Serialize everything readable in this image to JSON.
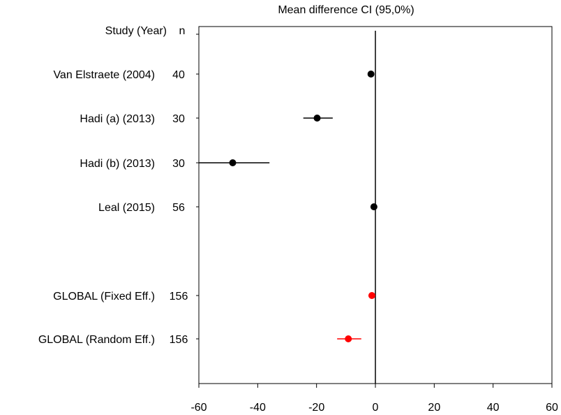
{
  "chart_data": {
    "type": "forest",
    "title": "Mean difference CI  (95,0%)",
    "header": {
      "study": "Study  (Year)",
      "n": "n"
    },
    "xlim": [
      -60,
      60
    ],
    "xticks": [
      -60,
      -40,
      -20,
      0,
      20,
      40,
      60
    ],
    "reference_line": 0,
    "studies": [
      {
        "label": "Van Elstraete (2004)",
        "n": "40",
        "estimate": -1.5,
        "ci": [
          -1.5,
          -1.5
        ],
        "color": "#000000"
      },
      {
        "label": "Hadi (a) (2013)",
        "n": "30",
        "estimate": -19.8,
        "ci": [
          -24.5,
          -14.5
        ],
        "color": "#000000"
      },
      {
        "label": "Hadi (b) (2013)",
        "n": "30",
        "estimate": -48.5,
        "ci": [
          -60,
          -36
        ],
        "color": "#000000"
      },
      {
        "label": "Leal (2015)",
        "n": "56",
        "estimate": -0.5,
        "ci": [
          -0.5,
          -0.5
        ],
        "color": "#000000"
      }
    ],
    "pooled": [
      {
        "label": "GLOBAL (Fixed Eff.)",
        "n": "156",
        "estimate": -1.2,
        "ci": [
          -1.2,
          -1.2
        ],
        "color": "#ff0000"
      },
      {
        "label": "GLOBAL (Random Eff.)",
        "n": "156",
        "estimate": -9.2,
        "ci": [
          -13.0,
          -4.8
        ],
        "color": "#ff0000"
      }
    ]
  }
}
